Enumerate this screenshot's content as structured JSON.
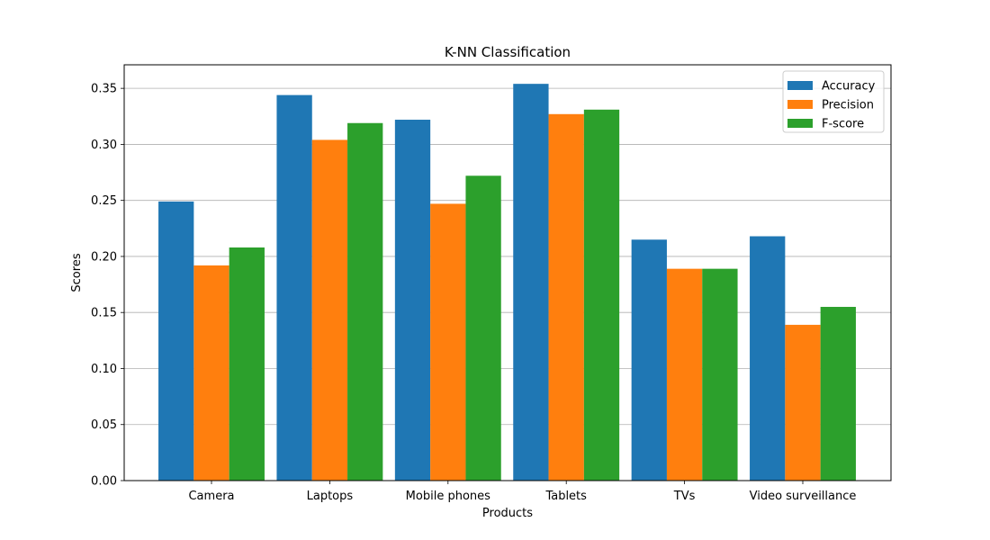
{
  "chart_data": {
    "type": "bar",
    "title": "K-NN Classification",
    "xlabel": "Products",
    "ylabel": "Scores",
    "categories": [
      "Camera",
      "Laptops",
      "Mobile phones",
      "Tablets",
      "TVs",
      "Video surveillance"
    ],
    "series": [
      {
        "name": "Accuracy",
        "color": "#1f77b4",
        "values": [
          0.249,
          0.344,
          0.322,
          0.354,
          0.215,
          0.218
        ]
      },
      {
        "name": "Precision",
        "color": "#ff7f0e",
        "values": [
          0.192,
          0.304,
          0.247,
          0.327,
          0.189,
          0.139
        ]
      },
      {
        "name": "F-score",
        "color": "#2ca02c",
        "values": [
          0.208,
          0.319,
          0.272,
          0.331,
          0.189,
          0.155
        ]
      }
    ],
    "ylim": [
      0,
      0.371
    ],
    "yticks": [
      "0.00",
      "0.05",
      "0.10",
      "0.15",
      "0.20",
      "0.25",
      "0.30",
      "0.35"
    ],
    "grid": "y-axis",
    "legend_position": "top-right"
  }
}
